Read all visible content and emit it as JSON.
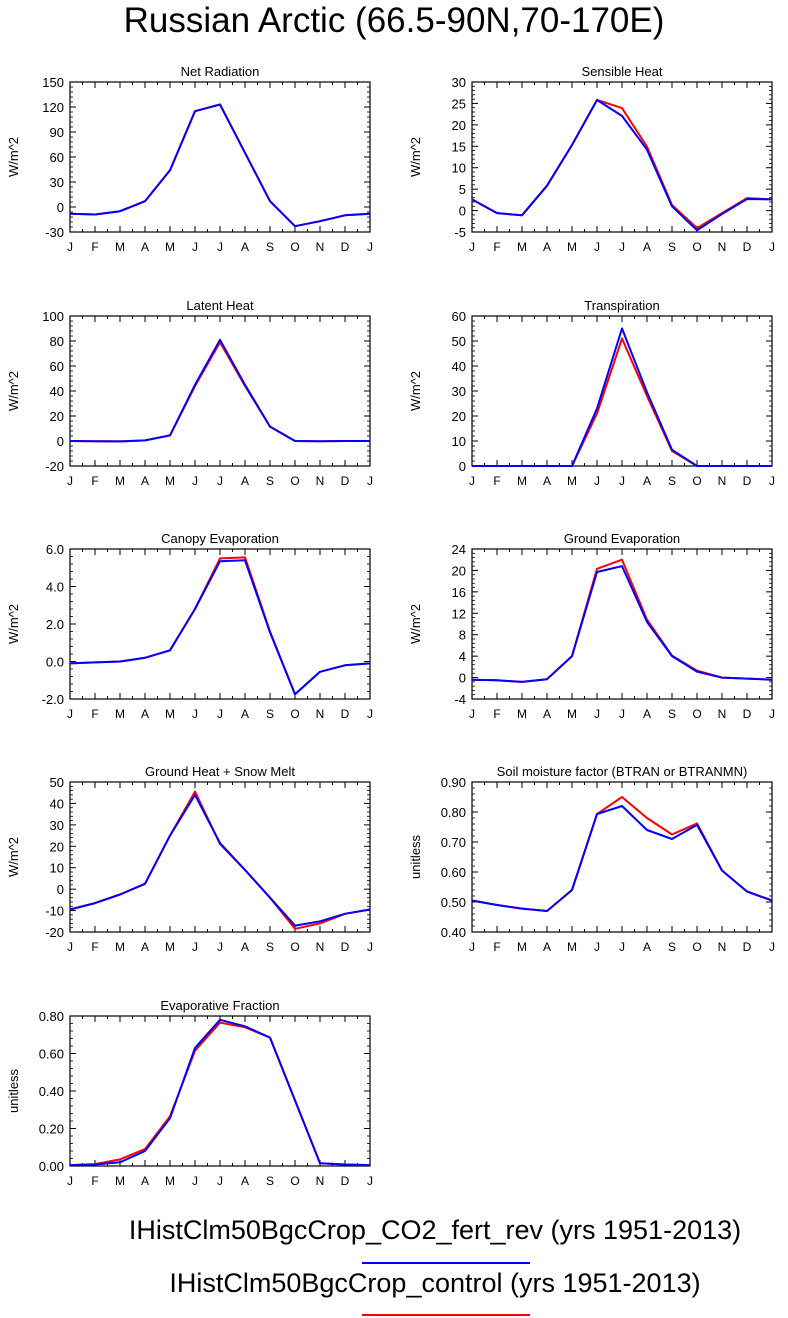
{
  "title": "Russian Arctic (66.5-90N,70-170E)",
  "months": [
    "J",
    "F",
    "M",
    "A",
    "M",
    "J",
    "J",
    "A",
    "S",
    "O",
    "N",
    "D",
    "J"
  ],
  "colors": {
    "CO2_fert_rev": "#0000ff",
    "control": "#ff0000"
  },
  "legend": [
    {
      "label": "IHistClm50BgcCrop_CO2_fert_rev (yrs 1951-2013)",
      "color": "#0000ff"
    },
    {
      "label": "IHistClm50BgcCrop_control (yrs 1951-2013)",
      "color": "#ff0000"
    }
  ],
  "chart_data": [
    {
      "type": "line",
      "title": "Net Radiation",
      "ylabel": "W/m^2",
      "ylim": [
        -30,
        150
      ],
      "yticks": [
        -30,
        0,
        30,
        60,
        90,
        120,
        150
      ],
      "ytick_labels": [
        "-30",
        "0",
        "30",
        "60",
        "90",
        "120",
        "150"
      ],
      "categories": [
        "J",
        "F",
        "M",
        "A",
        "M",
        "J",
        "J",
        "A",
        "S",
        "O",
        "N",
        "D",
        "J"
      ],
      "series": [
        {
          "name": "IHistClm50BgcCrop_control",
          "color": "#ff0000",
          "values": [
            -8,
            -9,
            -5,
            7,
            44,
            115,
            123,
            65,
            7,
            -23,
            -17,
            -10,
            -8
          ]
        },
        {
          "name": "IHistClm50BgcCrop_CO2_fert_rev",
          "color": "#0000ff",
          "values": [
            -8,
            -9,
            -5,
            7,
            44,
            115,
            123,
            65,
            7,
            -23,
            -17,
            -10,
            -8
          ]
        }
      ]
    },
    {
      "type": "line",
      "title": "Sensible Heat",
      "ylabel": "W/m^2",
      "ylim": [
        -5,
        30
      ],
      "yticks": [
        -5,
        0,
        5,
        10,
        15,
        20,
        25,
        30
      ],
      "ytick_labels": [
        "-5",
        "0",
        "5",
        "10",
        "15",
        "20",
        "25",
        "30"
      ],
      "categories": [
        "J",
        "F",
        "M",
        "A",
        "M",
        "J",
        "J",
        "A",
        "S",
        "O",
        "N",
        "D",
        "J"
      ],
      "series": [
        {
          "name": "IHistClm50BgcCrop_control",
          "color": "#ff0000",
          "values": [
            2.6,
            -0.6,
            -1.1,
            5.8,
            15.3,
            25.8,
            23.9,
            14.9,
            1.3,
            -4.1,
            -0.6,
            2.9,
            2.6
          ]
        },
        {
          "name": "IHistClm50BgcCrop_CO2_fert_rev",
          "color": "#0000ff",
          "values": [
            2.6,
            -0.6,
            -1.1,
            5.8,
            15.3,
            25.8,
            22.1,
            14.2,
            1.0,
            -4.6,
            -0.8,
            2.7,
            2.6
          ]
        }
      ]
    },
    {
      "type": "line",
      "title": "Latent Heat",
      "ylabel": "W/m^2",
      "ylim": [
        -20,
        100
      ],
      "yticks": [
        -20,
        0,
        20,
        40,
        60,
        80,
        100
      ],
      "ytick_labels": [
        "-20",
        "0",
        "20",
        "40",
        "60",
        "80",
        "100"
      ],
      "categories": [
        "J",
        "F",
        "M",
        "A",
        "M",
        "J",
        "J",
        "A",
        "S",
        "O",
        "N",
        "D",
        "J"
      ],
      "series": [
        {
          "name": "IHistClm50BgcCrop_control",
          "color": "#ff0000",
          "values": [
            0,
            -0.2,
            -0.3,
            0.5,
            4.5,
            44,
            79,
            44,
            11.5,
            0,
            -0.2,
            0,
            0
          ]
        },
        {
          "name": "IHistClm50BgcCrop_CO2_fert_rev",
          "color": "#0000ff",
          "values": [
            0,
            -0.2,
            -0.3,
            0.5,
            4.5,
            45,
            81,
            45,
            11.5,
            0,
            -0.2,
            0,
            0
          ]
        }
      ]
    },
    {
      "type": "line",
      "title": "Transpiration",
      "ylabel": "W/m^2",
      "ylim": [
        0,
        60
      ],
      "yticks": [
        0,
        10,
        20,
        30,
        40,
        50,
        60
      ],
      "ytick_labels": [
        "0",
        "10",
        "20",
        "30",
        "40",
        "50",
        "60"
      ],
      "categories": [
        "J",
        "F",
        "M",
        "A",
        "M",
        "J",
        "J",
        "A",
        "S",
        "O",
        "N",
        "D",
        "J"
      ],
      "series": [
        {
          "name": "IHistClm50BgcCrop_control",
          "color": "#ff0000",
          "values": [
            0,
            0,
            0,
            0,
            0,
            21,
            51,
            28,
            6,
            0,
            0,
            0,
            0
          ]
        },
        {
          "name": "IHistClm50BgcCrop_CO2_fert_rev",
          "color": "#0000ff",
          "values": [
            0,
            0,
            0,
            0,
            0,
            23,
            55,
            29.5,
            6.5,
            0,
            0,
            0,
            0
          ]
        }
      ]
    },
    {
      "type": "line",
      "title": "Canopy Evaporation",
      "ylabel": "W/m^2",
      "ylim": [
        -2,
        6
      ],
      "yticks": [
        -2,
        0,
        2,
        4,
        6
      ],
      "ytick_labels": [
        "-2.0",
        "0.0",
        "2.0",
        "4.0",
        "6.0"
      ],
      "categories": [
        "J",
        "F",
        "M",
        "A",
        "M",
        "J",
        "J",
        "A",
        "S",
        "O",
        "N",
        "D",
        "J"
      ],
      "series": [
        {
          "name": "IHistClm50BgcCrop_control",
          "color": "#ff0000",
          "values": [
            -0.1,
            -0.05,
            0,
            0.2,
            0.6,
            2.8,
            5.5,
            5.55,
            1.6,
            -1.75,
            -0.55,
            -0.2,
            -0.1
          ]
        },
        {
          "name": "IHistClm50BgcCrop_CO2_fert_rev",
          "color": "#0000ff",
          "values": [
            -0.1,
            -0.05,
            0,
            0.2,
            0.6,
            2.8,
            5.35,
            5.4,
            1.55,
            -1.75,
            -0.55,
            -0.2,
            -0.1
          ]
        }
      ]
    },
    {
      "type": "line",
      "title": "Ground Evaporation",
      "ylabel": "W/m^2",
      "ylim": [
        -4,
        24
      ],
      "yticks": [
        -4,
        0,
        4,
        8,
        12,
        16,
        20,
        24
      ],
      "ytick_labels": [
        "-4",
        "0",
        "4",
        "8",
        "12",
        "16",
        "20",
        "24"
      ],
      "categories": [
        "J",
        "F",
        "M",
        "A",
        "M",
        "J",
        "J",
        "A",
        "S",
        "O",
        "N",
        "D",
        "J"
      ],
      "series": [
        {
          "name": "IHistClm50BgcCrop_control",
          "color": "#ff0000",
          "values": [
            -0.4,
            -0.5,
            -0.8,
            -0.3,
            4,
            20.3,
            22,
            10.8,
            4.1,
            1.3,
            0,
            -0.2,
            -0.4
          ]
        },
        {
          "name": "IHistClm50BgcCrop_CO2_fert_rev",
          "color": "#0000ff",
          "values": [
            -0.4,
            -0.5,
            -0.8,
            -0.3,
            4,
            19.7,
            20.8,
            10.4,
            4,
            1.1,
            0,
            -0.2,
            -0.4
          ]
        }
      ]
    },
    {
      "type": "line",
      "title": "Ground Heat + Snow Melt",
      "ylabel": "W/m^2",
      "ylim": [
        -20,
        50
      ],
      "yticks": [
        -20,
        -10,
        0,
        10,
        20,
        30,
        40,
        50
      ],
      "ytick_labels": [
        "-20",
        "-10",
        "0",
        "10",
        "20",
        "30",
        "40",
        "50"
      ],
      "categories": [
        "J",
        "F",
        "M",
        "A",
        "M",
        "J",
        "J",
        "A",
        "S",
        "O",
        "N",
        "D",
        "J"
      ],
      "series": [
        {
          "name": "IHistClm50BgcCrop_control",
          "color": "#ff0000",
          "values": [
            -9.5,
            -6.5,
            -2.5,
            2.5,
            25,
            45.5,
            21,
            9,
            -4,
            -18.5,
            -16,
            -11.5,
            -9.5
          ]
        },
        {
          "name": "IHistClm50BgcCrop_CO2_fert_rev",
          "color": "#0000ff",
          "values": [
            -9.5,
            -6.5,
            -2.5,
            2.5,
            25,
            44,
            21.5,
            9,
            -4,
            -17,
            -15,
            -11.5,
            -9.5
          ]
        }
      ]
    },
    {
      "type": "line",
      "title": "Soil moisture factor (BTRAN or BTRANMN)",
      "ylabel": "unitless",
      "ylim": [
        0.4,
        0.9
      ],
      "yticks": [
        0.4,
        0.5,
        0.6,
        0.7,
        0.8,
        0.9
      ],
      "ytick_labels": [
        "0.40",
        "0.50",
        "0.60",
        "0.70",
        "0.80",
        "0.90"
      ],
      "categories": [
        "J",
        "F",
        "M",
        "A",
        "M",
        "J",
        "J",
        "A",
        "S",
        "O",
        "N",
        "D",
        "J"
      ],
      "series": [
        {
          "name": "IHistClm50BgcCrop_control",
          "color": "#ff0000",
          "values": [
            0.505,
            0.49,
            0.478,
            0.47,
            0.54,
            0.793,
            0.85,
            0.78,
            0.725,
            0.762,
            0.605,
            0.535,
            0.505
          ]
        },
        {
          "name": "IHistClm50BgcCrop_CO2_fert_rev",
          "color": "#0000ff",
          "values": [
            0.505,
            0.49,
            0.478,
            0.47,
            0.54,
            0.793,
            0.82,
            0.74,
            0.71,
            0.757,
            0.605,
            0.535,
            0.505
          ]
        }
      ]
    },
    {
      "type": "line",
      "title": "Evaporative Fraction",
      "ylabel": "unitless",
      "ylim": [
        0,
        0.8
      ],
      "yticks": [
        0,
        0.2,
        0.4,
        0.6,
        0.8
      ],
      "ytick_labels": [
        "0.00",
        "0.20",
        "0.40",
        "0.60",
        "0.80"
      ],
      "categories": [
        "J",
        "F",
        "M",
        "A",
        "M",
        "J",
        "J",
        "A",
        "S",
        "O",
        "N",
        "D",
        "J"
      ],
      "series": [
        {
          "name": "IHistClm50BgcCrop_control",
          "color": "#ff0000",
          "values": [
            0.005,
            0.01,
            0.035,
            0.09,
            0.265,
            0.615,
            0.765,
            0.74,
            0.685,
            0.35,
            0.015,
            0.008,
            0.005
          ]
        },
        {
          "name": "IHistClm50BgcCrop_CO2_fert_rev",
          "color": "#0000ff",
          "values": [
            0.005,
            0.008,
            0.02,
            0.08,
            0.255,
            0.63,
            0.78,
            0.745,
            0.685,
            0.35,
            0.015,
            0.008,
            0.005
          ]
        }
      ]
    }
  ]
}
